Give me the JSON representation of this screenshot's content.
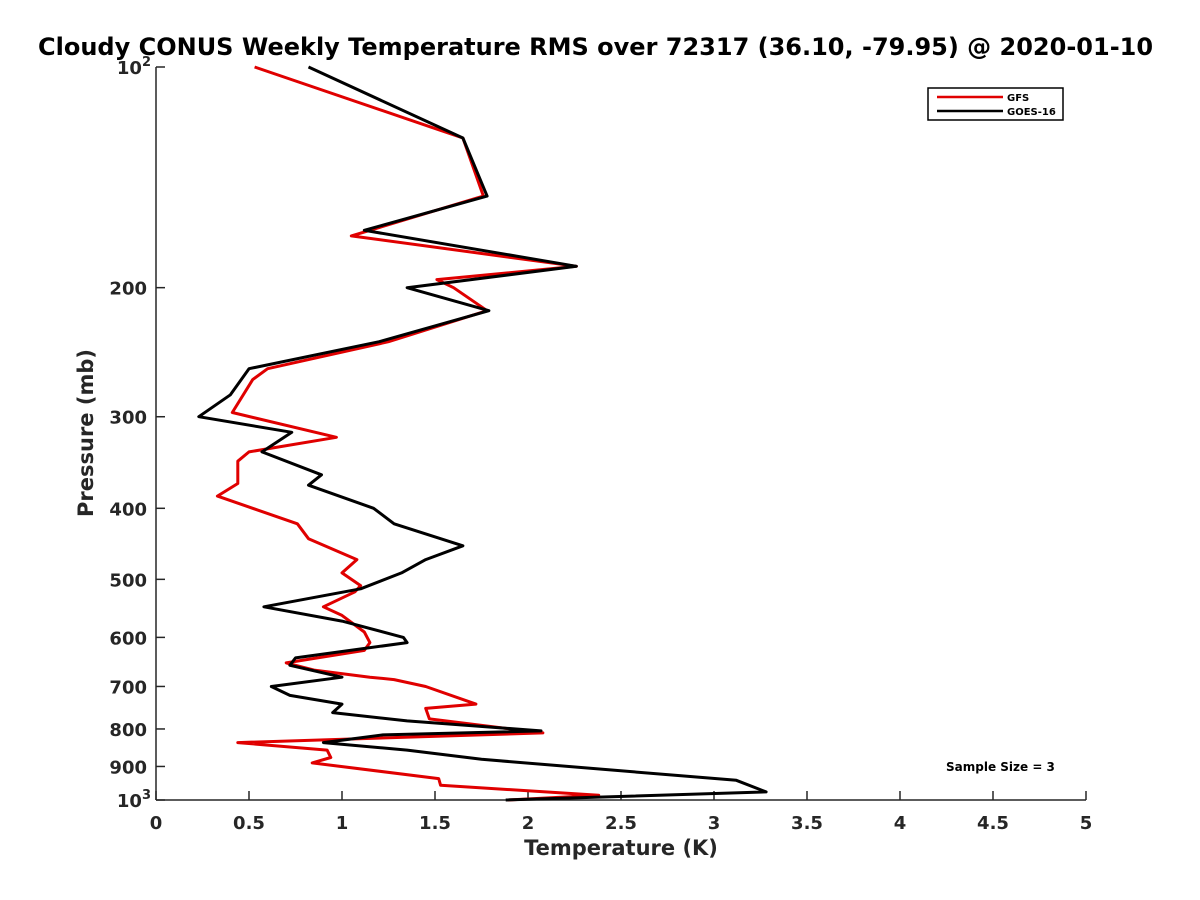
{
  "chart_data": {
    "type": "line",
    "title": "Cloudy CONUS Weekly Temperature RMS over 72317 (36.10, -79.95) @ 2020-01-10",
    "xlabel": "Temperature (K)",
    "ylabel": "Pressure (mb)",
    "xlim": [
      0,
      5
    ],
    "ylim": [
      100,
      1000
    ],
    "y_scale": "log",
    "y_reversed": true,
    "x_ticks": [
      "0",
      "0.5",
      "1",
      "1.5",
      "2",
      "2.5",
      "3",
      "3.5",
      "4",
      "4.5",
      "5"
    ],
    "y_ticks": [
      {
        "value": 100,
        "base": "10",
        "exp": "2"
      },
      {
        "value": 200,
        "label": "200"
      },
      {
        "value": 300,
        "label": "300"
      },
      {
        "value": 400,
        "label": "400"
      },
      {
        "value": 500,
        "label": "500"
      },
      {
        "value": 600,
        "label": "600"
      },
      {
        "value": 700,
        "label": "700"
      },
      {
        "value": 800,
        "label": "800"
      },
      {
        "value": 900,
        "label": "900"
      },
      {
        "value": 1000,
        "base": "10",
        "exp": "3"
      }
    ],
    "grid": false,
    "legend_position": "top-right",
    "annotation": "Sample Size = 3",
    "series": [
      {
        "name": "GFS",
        "color": "#e00000",
        "points": [
          [
            0.53,
            100
          ],
          [
            1.65,
            125
          ],
          [
            1.76,
            150
          ],
          [
            1.05,
            170
          ],
          [
            2.26,
            187
          ],
          [
            1.51,
            195
          ],
          [
            1.6,
            200
          ],
          [
            1.78,
            215
          ],
          [
            1.25,
            237
          ],
          [
            0.6,
            258
          ],
          [
            0.52,
            267
          ],
          [
            0.41,
            296
          ],
          [
            0.97,
            320
          ],
          [
            0.5,
            335
          ],
          [
            0.44,
            345
          ],
          [
            0.44,
            370
          ],
          [
            0.33,
            385
          ],
          [
            0.76,
            420
          ],
          [
            0.82,
            440
          ],
          [
            1.08,
            470
          ],
          [
            1.0,
            490
          ],
          [
            1.1,
            510
          ],
          [
            1.07,
            520
          ],
          [
            0.9,
            545
          ],
          [
            1.0,
            560
          ],
          [
            1.12,
            590
          ],
          [
            1.15,
            610
          ],
          [
            1.12,
            625
          ],
          [
            0.7,
            650
          ],
          [
            0.85,
            665
          ],
          [
            1.15,
            680
          ],
          [
            1.28,
            685
          ],
          [
            1.45,
            700
          ],
          [
            1.72,
            740
          ],
          [
            1.45,
            750
          ],
          [
            1.47,
            775
          ],
          [
            2.08,
            810
          ],
          [
            0.44,
            835
          ],
          [
            0.92,
            855
          ],
          [
            0.94,
            875
          ],
          [
            0.84,
            890
          ],
          [
            1.52,
            935
          ],
          [
            1.53,
            955
          ],
          [
            2.38,
            985
          ],
          [
            1.89,
            1000
          ]
        ]
      },
      {
        "name": "GOES-16",
        "color": "#000000",
        "points": [
          [
            0.82,
            100
          ],
          [
            1.65,
            125
          ],
          [
            1.78,
            150
          ],
          [
            1.12,
            167
          ],
          [
            2.26,
            187
          ],
          [
            1.35,
            200
          ],
          [
            1.79,
            215
          ],
          [
            1.2,
            237
          ],
          [
            0.5,
            258
          ],
          [
            0.4,
            280
          ],
          [
            0.23,
            300
          ],
          [
            0.73,
            315
          ],
          [
            0.57,
            335
          ],
          [
            0.89,
            360
          ],
          [
            0.82,
            372
          ],
          [
            1.17,
            400
          ],
          [
            1.28,
            420
          ],
          [
            1.65,
            450
          ],
          [
            1.45,
            470
          ],
          [
            1.32,
            490
          ],
          [
            1.1,
            515
          ],
          [
            0.58,
            545
          ],
          [
            1.0,
            570
          ],
          [
            1.33,
            600
          ],
          [
            1.35,
            610
          ],
          [
            0.75,
            640
          ],
          [
            0.72,
            655
          ],
          [
            1.0,
            680
          ],
          [
            0.62,
            700
          ],
          [
            0.72,
            720
          ],
          [
            1.0,
            740
          ],
          [
            0.95,
            760
          ],
          [
            1.35,
            780
          ],
          [
            2.07,
            805
          ],
          [
            1.22,
            815
          ],
          [
            0.9,
            835
          ],
          [
            1.35,
            855
          ],
          [
            1.75,
            880
          ],
          [
            3.12,
            940
          ],
          [
            3.28,
            975
          ],
          [
            1.88,
            1000
          ]
        ]
      }
    ]
  }
}
